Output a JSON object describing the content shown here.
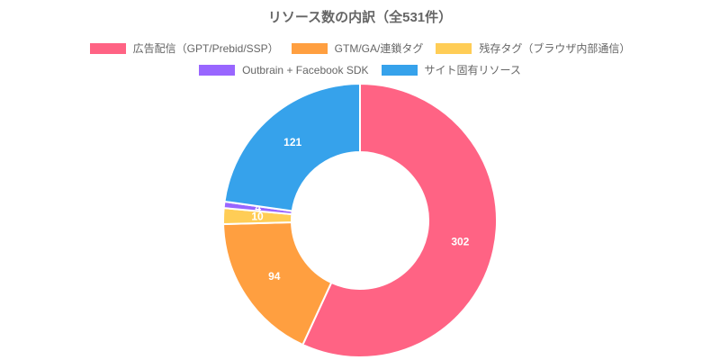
{
  "chart_data": {
    "type": "doughnut",
    "title": "リソース数の内訳（全531件）",
    "categories": [
      "広告配信（GPT/Prebid/SSP）",
      "GTM/GA/連鎖タグ",
      "残存タグ（ブラウザ内部通信）",
      "Outbrain + Facebook SDK",
      "サイト固有リソース"
    ],
    "values": [
      302,
      94,
      10,
      4,
      121
    ],
    "colors": [
      "#ff6384",
      "#ff9f40",
      "#ffcd56",
      "#9966ff",
      "#36a2eb"
    ]
  }
}
